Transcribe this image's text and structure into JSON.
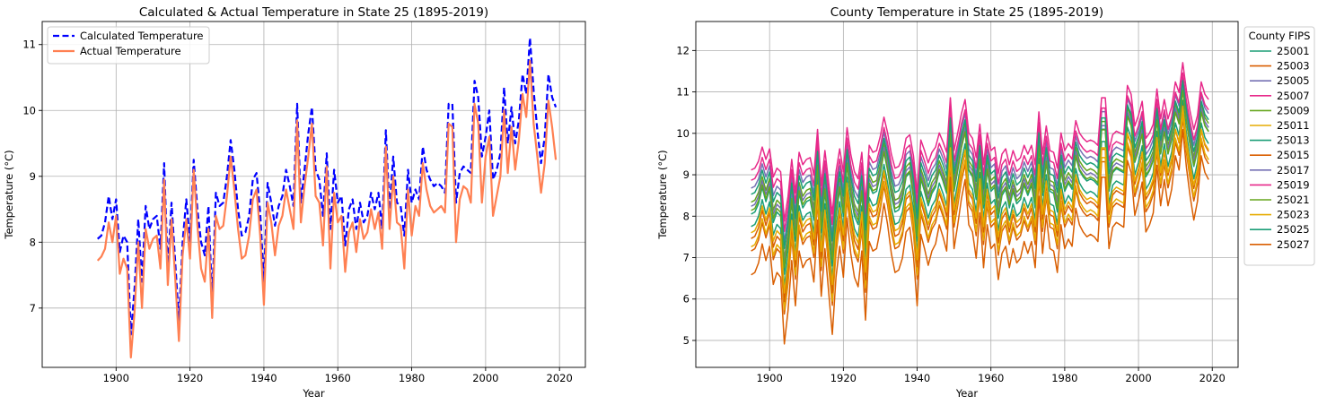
{
  "chart_data": [
    {
      "type": "line",
      "title": "Calculated & Actual Temperature in State 25 (1895-2019)",
      "xlabel": "Year",
      "ylabel": "Temperature (°C)",
      "xlim": [
        1880,
        2027
      ],
      "ylim": [
        6.1,
        11.35
      ],
      "xticks": [
        1900,
        1920,
        1940,
        1960,
        1980,
        2000,
        2020
      ],
      "yticks": [
        7,
        8,
        9,
        10,
        11
      ],
      "grid": true,
      "legend": "top-left",
      "x_start": 1895,
      "x_step": 1,
      "series": [
        {
          "name": "Calculated Temperature",
          "color": "#0000ff",
          "dash": "dashed",
          "values": [
            8.05,
            8.1,
            8.3,
            8.7,
            8.35,
            8.65,
            7.85,
            8.1,
            8.0,
            6.6,
            7.3,
            8.35,
            7.4,
            8.55,
            8.2,
            8.35,
            8.4,
            7.9,
            9.2,
            7.6,
            8.6,
            7.7,
            6.8,
            8.0,
            8.65,
            8.0,
            9.25,
            8.5,
            8.0,
            7.8,
            8.55,
            7.1,
            8.75,
            8.55,
            8.6,
            9.0,
            9.55,
            9.1,
            8.5,
            8.1,
            8.15,
            8.4,
            8.95,
            9.05,
            8.45,
            7.4,
            8.9,
            8.6,
            8.25,
            8.55,
            8.7,
            9.1,
            8.85,
            8.55,
            10.1,
            8.6,
            9.1,
            9.65,
            10.05,
            9.1,
            8.95,
            8.4,
            9.35,
            8.2,
            9.1,
            8.6,
            8.7,
            7.95,
            8.5,
            8.65,
            8.2,
            8.6,
            8.3,
            8.4,
            8.75,
            8.5,
            8.75,
            8.2,
            9.7,
            8.5,
            9.3,
            8.6,
            8.55,
            8.1,
            9.1,
            8.6,
            8.8,
            8.65,
            9.45,
            9.1,
            8.95,
            8.85,
            8.9,
            8.85,
            8.75,
            10.1,
            10.1,
            8.6,
            9.05,
            9.15,
            9.1,
            9.05,
            10.45,
            10.2,
            9.3,
            9.6,
            10.0,
            8.95,
            9.1,
            9.35,
            10.35,
            9.5,
            10.05,
            9.5,
            9.85,
            10.55,
            10.25,
            11.1,
            10.3,
            9.7,
            9.2,
            9.6,
            10.55,
            10.2,
            10.05
          ]
        },
        {
          "name": "Actual Temperature",
          "color": "#ff8052",
          "dash": "solid",
          "values": [
            7.72,
            7.78,
            7.9,
            8.3,
            8.0,
            8.4,
            7.52,
            7.75,
            7.6,
            6.25,
            6.95,
            8.0,
            7.0,
            8.2,
            7.9,
            8.05,
            8.1,
            7.6,
            8.95,
            7.35,
            8.35,
            7.45,
            6.5,
            7.8,
            8.35,
            7.75,
            9.1,
            8.25,
            7.6,
            7.4,
            8.2,
            6.85,
            8.4,
            8.2,
            8.25,
            8.7,
            9.3,
            8.8,
            8.2,
            7.75,
            7.8,
            8.1,
            8.65,
            8.8,
            8.1,
            7.05,
            8.6,
            8.3,
            7.8,
            8.25,
            8.4,
            8.8,
            8.5,
            8.2,
            9.85,
            8.3,
            8.85,
            9.3,
            9.8,
            8.7,
            8.6,
            7.95,
            9.15,
            7.6,
            8.75,
            8.3,
            8.4,
            7.55,
            8.15,
            8.3,
            7.85,
            8.35,
            8.05,
            8.15,
            8.5,
            8.2,
            8.45,
            7.9,
            9.45,
            8.2,
            9.0,
            8.3,
            8.25,
            7.6,
            8.8,
            8.1,
            8.55,
            8.4,
            9.2,
            8.8,
            8.55,
            8.45,
            8.5,
            8.55,
            8.45,
            9.8,
            9.75,
            8.0,
            8.65,
            8.85,
            8.8,
            8.6,
            10.1,
            9.8,
            8.6,
            9.3,
            9.6,
            8.4,
            8.7,
            9.0,
            10.0,
            9.05,
            9.75,
            9.1,
            9.55,
            10.25,
            9.9,
            10.75,
            9.8,
            9.3,
            8.75,
            9.2,
            10.15,
            9.75,
            9.25
          ]
        }
      ]
    },
    {
      "type": "line",
      "title": "County Temperature in State 25 (1895-2019)",
      "xlabel": "Year",
      "ylabel": "Temperature (°C)",
      "xlim": [
        1880,
        2027
      ],
      "ylim": [
        4.35,
        12.7
      ],
      "xticks": [
        1900,
        1920,
        1940,
        1960,
        1980,
        2000,
        2020
      ],
      "yticks": [
        5,
        6,
        7,
        8,
        9,
        10,
        11,
        12
      ],
      "grid": true,
      "legend": "outside-right",
      "legend_title": "County FIPS",
      "x_start": 1895,
      "x_step": 1,
      "base_series": [
        8.05,
        8.1,
        8.3,
        8.7,
        8.35,
        8.65,
        7.85,
        8.1,
        8.0,
        6.6,
        7.3,
        8.35,
        7.4,
        8.55,
        8.2,
        8.35,
        8.4,
        7.9,
        9.2,
        7.6,
        8.6,
        7.7,
        6.8,
        8.0,
        8.65,
        8.0,
        9.25,
        8.5,
        8.0,
        7.8,
        8.55,
        7.1,
        8.75,
        8.55,
        8.6,
        9.0,
        9.55,
        9.1,
        8.5,
        8.1,
        8.15,
        8.4,
        8.95,
        9.05,
        8.45,
        7.4,
        8.9,
        8.6,
        8.25,
        8.55,
        8.7,
        9.1,
        8.85,
        8.55,
        10.1,
        8.6,
        9.1,
        9.65,
        10.05,
        9.1,
        8.95,
        8.4,
        9.35,
        8.2,
        9.1,
        8.6,
        8.7,
        7.95,
        8.5,
        8.65,
        8.2,
        8.6,
        8.3,
        8.4,
        8.75,
        8.5,
        8.75,
        8.2,
        9.7,
        8.5,
        9.3,
        8.6,
        8.55,
        8.1,
        9.1,
        8.6,
        8.8,
        8.65,
        9.45,
        9.1,
        8.95,
        8.85,
        8.9,
        8.85,
        8.75,
        10.1,
        10.1,
        8.6,
        9.05,
        9.15,
        9.1,
        9.05,
        10.45,
        10.2,
        9.3,
        9.6,
        10.0,
        8.95,
        9.1,
        9.35,
        10.35,
        9.5,
        10.05,
        9.5,
        9.85,
        10.55,
        10.25,
        11.1,
        10.3,
        9.7,
        9.2,
        9.6,
        10.55,
        10.2,
        10.05
      ],
      "series": [
        {
          "name": "25001",
          "color": "#1b9e77",
          "offset": 0.0,
          "scale": 1.0
        },
        {
          "name": "25003",
          "color": "#d95f02",
          "offset": -0.85,
          "scale": 1.05
        },
        {
          "name": "25005",
          "color": "#7570b3",
          "offset": 0.55,
          "scale": 0.9
        },
        {
          "name": "25007",
          "color": "#e7298a",
          "offset": 0.95,
          "scale": 0.85
        },
        {
          "name": "25009",
          "color": "#66a61e",
          "offset": 0.25,
          "scale": 0.95
        },
        {
          "name": "25011",
          "color": "#e6ab02",
          "offset": -0.75,
          "scale": 1.05
        },
        {
          "name": "25013",
          "color": "#1b9e77",
          "offset": -0.3,
          "scale": 1.0
        },
        {
          "name": "25015",
          "color": "#d95f02",
          "offset": -0.55,
          "scale": 1.05
        },
        {
          "name": "25017",
          "color": "#7570b3",
          "offset": 0.15,
          "scale": 0.95
        },
        {
          "name": "25019",
          "color": "#e7298a",
          "offset": 0.7,
          "scale": 0.85
        },
        {
          "name": "25021",
          "color": "#66a61e",
          "offset": 0.05,
          "scale": 0.95
        },
        {
          "name": "25023",
          "color": "#e6ab02",
          "offset": -0.45,
          "scale": 1.0
        },
        {
          "name": "25025",
          "color": "#1b9e77",
          "offset": 0.4,
          "scale": 0.9
        },
        {
          "name": "25027",
          "color": "#d95f02",
          "offset": -1.35,
          "scale": 1.15
        }
      ]
    }
  ]
}
